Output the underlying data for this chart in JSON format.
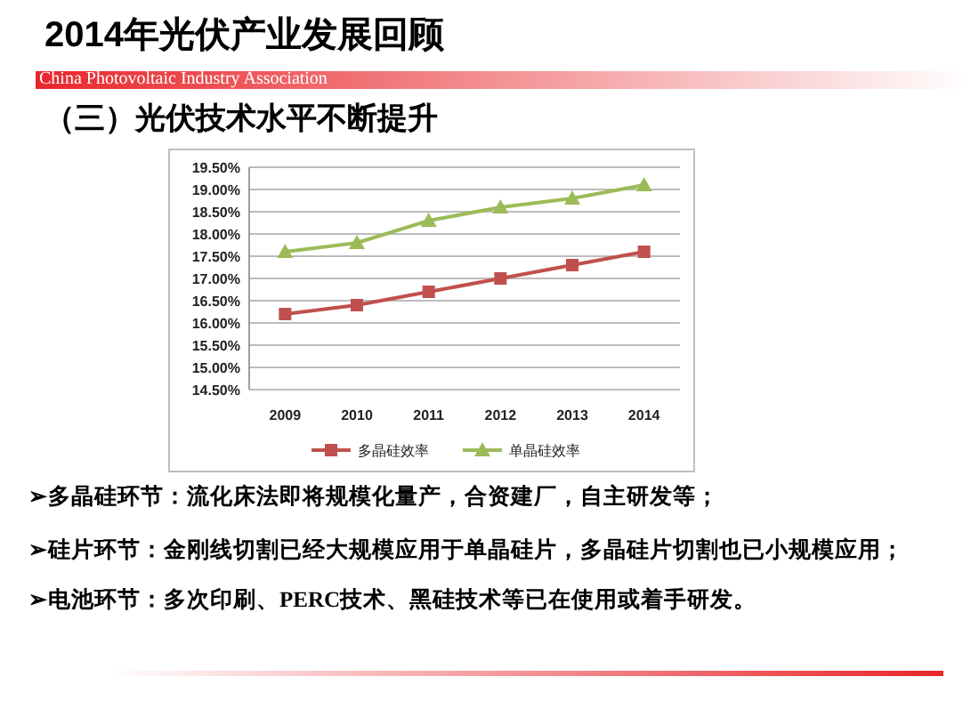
{
  "chart_data": {
    "type": "line",
    "title": "2014年光伏产业发展回顾",
    "subtitle": "（三）光伏技术水平不断提升",
    "annotations": [
      "China Photovoltaic Industry Association",
      "➢多晶硅环节：流化床法即将规模化量产，合资建厂，自主研发等；",
      "➢硅片环节：金刚线切割已经大规模应用于单晶硅片，多晶硅片切割也已小规模应用；",
      "➢电池环节：多次印刷、PERC技术、黑硅技术等已在使用或着手研发。"
    ],
    "categories": [
      "2009",
      "2010",
      "2011",
      "2012",
      "2013",
      "2014"
    ],
    "series": [
      {
        "name": "多晶硅效率",
        "color": "#c0504d",
        "marker": "square",
        "values": [
          16.2,
          16.4,
          16.7,
          17.0,
          17.3,
          17.6
        ]
      },
      {
        "name": "单晶硅效率",
        "color": "#9bbb59",
        "marker": "triangle",
        "values": [
          17.6,
          17.8,
          18.3,
          18.6,
          18.8,
          19.1
        ]
      }
    ],
    "ylim": [
      14.5,
      19.5
    ],
    "yticks": [
      {
        "value": 14.5,
        "label": "14.50%"
      },
      {
        "value": 15,
        "label": "15.00%"
      },
      {
        "value": 15.5,
        "label": "15.50%"
      },
      {
        "value": 16,
        "label": "16.00%"
      },
      {
        "value": 16.5,
        "label": "16.50%"
      },
      {
        "value": 17,
        "label": "17.00%"
      },
      {
        "value": 17.5,
        "label": "17.50%"
      },
      {
        "value": 18,
        "label": "18.00%"
      },
      {
        "value": 18.5,
        "label": "18.50%"
      },
      {
        "value": 19,
        "label": "19.00%"
      },
      {
        "value": 19.5,
        "label": "19.50%"
      }
    ],
    "grid": "y",
    "legend": "bottom",
    "line_style": "solid"
  }
}
